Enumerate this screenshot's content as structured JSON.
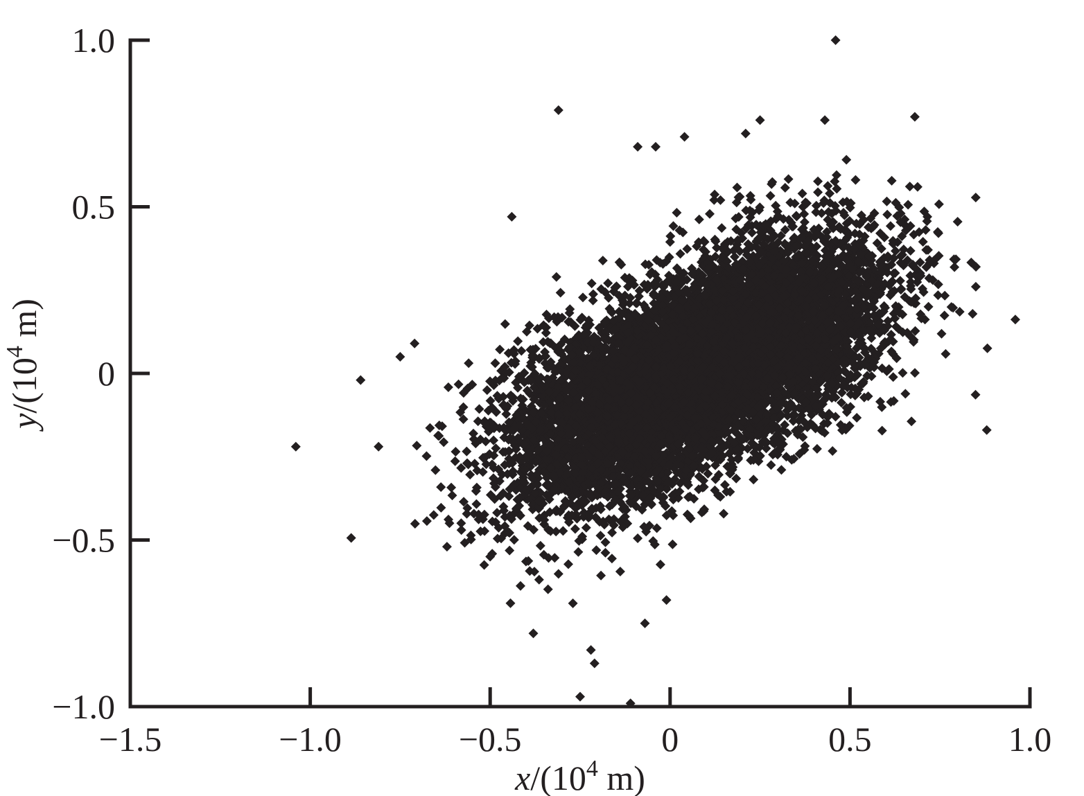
{
  "chart_data": {
    "type": "scatter",
    "marker": "diamond",
    "marker_color": "#231f20",
    "grid": false,
    "legend": "none",
    "xlim": [
      -1.5,
      1.0
    ],
    "ylim": [
      -1.0,
      1.0
    ],
    "x_ticks": [
      -1.5,
      -1.0,
      -0.5,
      0,
      0.5,
      1.0
    ],
    "y_ticks": [
      -1.0,
      -0.5,
      0,
      0.5,
      1.0
    ],
    "x_tick_labels": [
      "−1.5",
      "−1.0",
      "−0.5",
      "0",
      "0.5",
      "1.0"
    ],
    "y_tick_labels": [
      "−1.0",
      "−0.5",
      "0",
      "0.5",
      "1.0"
    ],
    "xlabel": {
      "var": "x",
      "pre": "/(10",
      "sup": "4",
      "post": " m)"
    },
    "ylabel": {
      "var": "y",
      "pre": "/(10",
      "sup": "4",
      "post": " m)"
    },
    "cloud": {
      "n_points": 9000,
      "cluster_centers": [
        [
          -0.1,
          -0.1
        ],
        [
          0.25,
          0.12
        ]
      ],
      "x_std": 0.19,
      "y_std": 0.16,
      "xy_correlation": 0.4
    },
    "outliers": [
      [
        0.46,
        1.0
      ],
      [
        -0.31,
        0.79
      ],
      [
        0.68,
        0.77
      ],
      [
        0.25,
        0.76
      ],
      [
        0.43,
        0.76
      ],
      [
        0.04,
        0.71
      ],
      [
        0.21,
        0.72
      ],
      [
        -0.09,
        0.68
      ],
      [
        -0.04,
        0.68
      ],
      [
        -0.44,
        0.47
      ],
      [
        0.85,
        0.32
      ],
      [
        0.73,
        0.28
      ],
      [
        0.88,
        -0.17
      ],
      [
        -1.04,
        -0.22
      ],
      [
        -0.86,
        -0.02
      ],
      [
        -0.81,
        -0.22
      ],
      [
        -0.75,
        0.05
      ],
      [
        -0.71,
        0.09
      ],
      [
        -0.58,
        -0.47
      ],
      [
        -0.62,
        -0.52
      ],
      [
        -0.5,
        -0.55
      ],
      [
        -0.38,
        -0.78
      ],
      [
        -0.22,
        -0.83
      ],
      [
        -0.21,
        -0.87
      ],
      [
        -0.25,
        -0.97
      ],
      [
        -0.11,
        -0.99
      ],
      [
        -0.07,
        -0.75
      ],
      [
        -0.01,
        -0.68
      ],
      [
        -0.27,
        -0.69
      ]
    ]
  }
}
